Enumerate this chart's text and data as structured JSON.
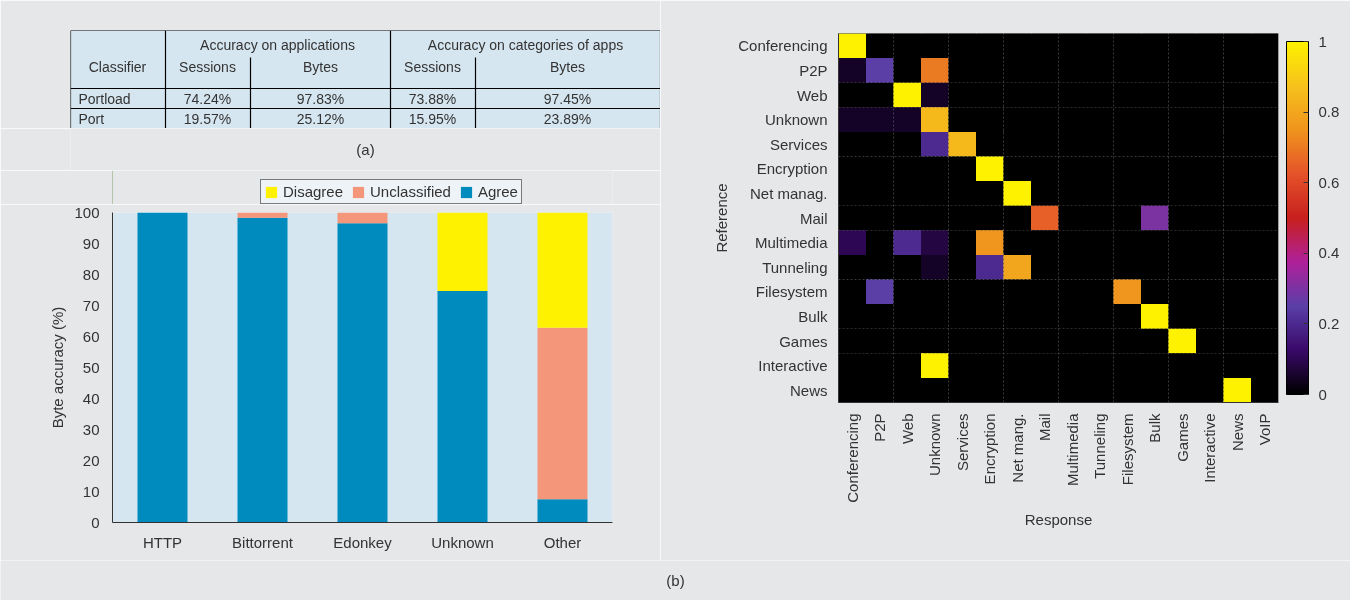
{
  "chart_data": [
    {
      "type": "other",
      "annotations": [
        "Classifier",
        "Accuracy on applications",
        "Accuracy on categories of apps",
        "Sessions",
        "Bytes",
        "Sessions",
        "Bytes",
        "Portload",
        "74.24%",
        "97.83%",
        "73.88%",
        "97.45%",
        "Port",
        "19.57%",
        "25.12%",
        "15.95%",
        "23.89%",
        "(a)"
      ]
    },
    {
      "type": "bar",
      "stacked": true,
      "categories": [
        "HTTP",
        "Bittorrent",
        "Edonkey",
        "Unknown",
        "Other"
      ],
      "ylabel": "Byte accuracy (%)",
      "ylim": [
        0,
        100
      ],
      "yticks": [
        0,
        10,
        20,
        30,
        40,
        50,
        60,
        70,
        80,
        90,
        100
      ],
      "legend": "top",
      "grid": false,
      "series": [
        {
          "name": "Agree",
          "color": "#008bbf",
          "values": [
            100,
            98.3,
            96.5,
            74.7,
            7.5
          ]
        },
        {
          "name": "Unclassified",
          "color": "#f4967a",
          "values": [
            0,
            1.7,
            3.5,
            0,
            55.3
          ]
        },
        {
          "name": "Disagree",
          "color": "#fff200",
          "values": [
            0,
            0,
            0,
            25.3,
            37.2
          ]
        }
      ],
      "annotations": [
        "(b)"
      ]
    },
    {
      "type": "heatmap",
      "xlabel": "Response",
      "ylabel": "Reference",
      "grid": true,
      "categories": [
        "Conferencing",
        "P2P",
        "Web",
        "Unknown",
        "Services",
        "Encryption",
        "Net mang.",
        "Mail",
        "Multimedia",
        "Tunneling",
        "Filesystem",
        "Bulk",
        "Games",
        "Interactive",
        "News",
        "VoIP"
      ],
      "y_categories": [
        "Conferencing",
        "P2P",
        "Web",
        "Unknown",
        "Services",
        "Encryption",
        "Net manag.",
        "Mail",
        "Multimedia",
        "Tunneling",
        "Filesystem",
        "Bulk",
        "Games",
        "Interactive",
        "News"
      ],
      "cells": [
        [
          1,
          0,
          0,
          0,
          0,
          0,
          0,
          0,
          0,
          0,
          0,
          0,
          0,
          0,
          0,
          0
        ],
        [
          0.05,
          0.25,
          0,
          0.7,
          0,
          0,
          0,
          0,
          0,
          0,
          0,
          0,
          0,
          0,
          0,
          0
        ],
        [
          0,
          0,
          1,
          0.05,
          0,
          0,
          0,
          0,
          0,
          0,
          0,
          0,
          0,
          0,
          0,
          0
        ],
        [
          0.05,
          0.05,
          0.05,
          0.85,
          0,
          0,
          0,
          0,
          0,
          0,
          0,
          0,
          0,
          0,
          0,
          0
        ],
        [
          0,
          0,
          0,
          0.2,
          0.85,
          0,
          0,
          0,
          0,
          0,
          0,
          0,
          0,
          0,
          0,
          0
        ],
        [
          0,
          0,
          0,
          0,
          0,
          1,
          0,
          0,
          0,
          0,
          0,
          0,
          0,
          0,
          0,
          0
        ],
        [
          0,
          0,
          0,
          0,
          0,
          0,
          1,
          0,
          0,
          0,
          0,
          0,
          0,
          0,
          0,
          0
        ],
        [
          0,
          0,
          0,
          0,
          0,
          0,
          0,
          0.65,
          0,
          0,
          0,
          0.3,
          0,
          0,
          0,
          0
        ],
        [
          0.1,
          0,
          0.2,
          0.08,
          0,
          0.75,
          0,
          0,
          0,
          0,
          0,
          0,
          0,
          0,
          0,
          0
        ],
        [
          0,
          0,
          0,
          0.05,
          0,
          0.2,
          0.8,
          0,
          0,
          0,
          0,
          0,
          0,
          0,
          0,
          0
        ],
        [
          0,
          0.25,
          0,
          0,
          0,
          0,
          0,
          0,
          0,
          0,
          0.75,
          0,
          0,
          0,
          0,
          0
        ],
        [
          0,
          0,
          0,
          0,
          0,
          0,
          0,
          0,
          0,
          0,
          0,
          1,
          0,
          0,
          0,
          0
        ],
        [
          0,
          0,
          0,
          0,
          0,
          0,
          0,
          0,
          0,
          0,
          0,
          0,
          1,
          0,
          0,
          0
        ],
        [
          0,
          0,
          0,
          1,
          0,
          0,
          0,
          0,
          0,
          0,
          0,
          0,
          0,
          0,
          0,
          0
        ],
        [
          0,
          0,
          0,
          0,
          0,
          0,
          0,
          0,
          0,
          0,
          0,
          0,
          0,
          0,
          1,
          0
        ]
      ],
      "clim": [
        0,
        1
      ],
      "cticks": [
        0,
        {
          "value": 0.2,
          "label": "0.2"
        },
        {
          "value": 0.4,
          "label": "0.4"
        },
        {
          "value": 0.6,
          "label": "0.6"
        },
        {
          "value": 0.8,
          "label": "0.8"
        },
        1
      ]
    }
  ]
}
